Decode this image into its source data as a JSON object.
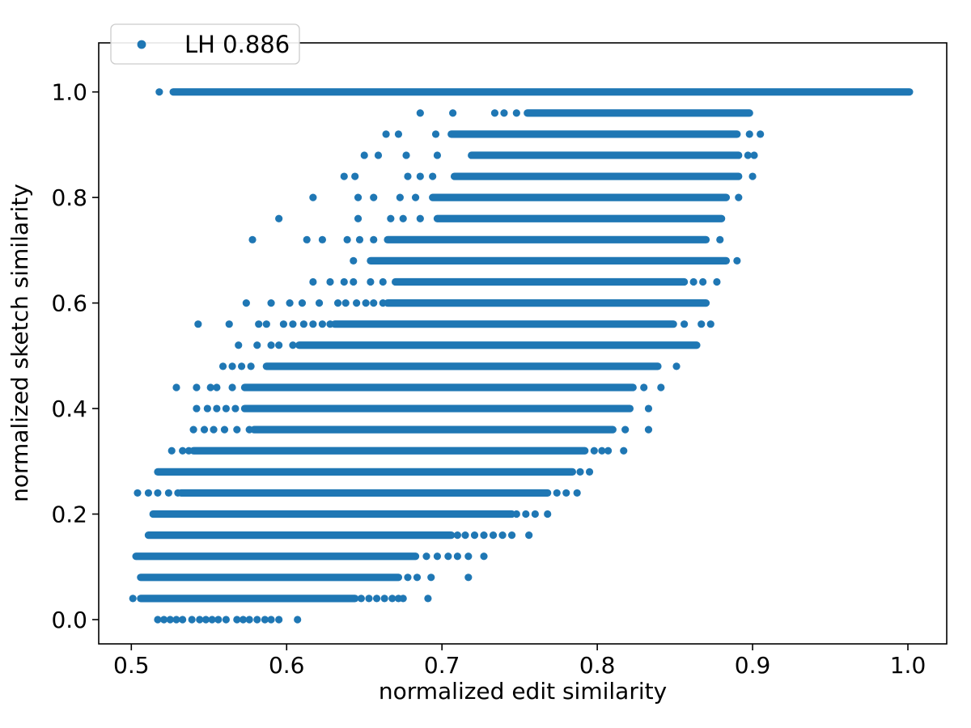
{
  "chart_data": {
    "type": "scatter",
    "title": "",
    "xlabel": "normalized edit similarity",
    "ylabel": "normalized sketch similarity",
    "xlim": [
      0.479,
      1.025
    ],
    "ylim": [
      -0.046,
      1.093
    ],
    "grid": false,
    "legend": {
      "label": "LH 0.886",
      "position": "upper left"
    },
    "marker_color": "#1f77b4",
    "marker_diameter_px": 9.2,
    "xticks": [
      0.5,
      0.6,
      0.7,
      0.8,
      0.9,
      1.0
    ],
    "xtick_labels": [
      "0.5",
      "0.6",
      "0.7",
      "0.8",
      "0.9",
      "1.0"
    ],
    "yticks": [
      0.0,
      0.2,
      0.4,
      0.6,
      0.8,
      1.0
    ],
    "ytick_labels": [
      "0.0",
      "0.2",
      "0.4",
      "0.6",
      "0.8",
      "1.0"
    ],
    "rows": [
      {
        "y": 1.0,
        "band": [
          0.527,
          1.001
        ],
        "dots": [
          0.518
        ]
      },
      {
        "y": 0.96,
        "band": [
          0.755,
          0.898
        ],
        "dots": [
          0.686,
          0.707,
          0.734,
          0.74,
          0.748
        ]
      },
      {
        "y": 0.92,
        "band": [
          0.706,
          0.89
        ],
        "dots": [
          0.664,
          0.672,
          0.696,
          0.898,
          0.905
        ]
      },
      {
        "y": 0.88,
        "band": [
          0.719,
          0.891
        ],
        "dots": [
          0.65,
          0.659,
          0.677,
          0.697,
          0.897,
          0.901
        ]
      },
      {
        "y": 0.84,
        "band": [
          0.708,
          0.891
        ],
        "dots": [
          0.637,
          0.644,
          0.678,
          0.686,
          0.694,
          0.9
        ]
      },
      {
        "y": 0.8,
        "band": [
          0.694,
          0.883
        ],
        "dots": [
          0.617,
          0.646,
          0.656,
          0.673,
          0.683,
          0.891
        ]
      },
      {
        "y": 0.76,
        "band": [
          0.697,
          0.88
        ],
        "dots": [
          0.595,
          0.646,
          0.667,
          0.675,
          0.686
        ]
      },
      {
        "y": 0.72,
        "band": [
          0.665,
          0.87
        ],
        "dots": [
          0.578,
          0.613,
          0.623,
          0.639,
          0.647,
          0.656,
          0.879
        ]
      },
      {
        "y": 0.68,
        "band": [
          0.654,
          0.883
        ],
        "dots": [
          0.643,
          0.89
        ]
      },
      {
        "y": 0.64,
        "band": [
          0.67,
          0.856
        ],
        "dots": [
          0.617,
          0.628,
          0.637,
          0.643,
          0.654,
          0.662,
          0.862,
          0.868,
          0.877
        ]
      },
      {
        "y": 0.6,
        "band": [
          0.665,
          0.87
        ],
        "dots": [
          0.574,
          0.59,
          0.602,
          0.61,
          0.621,
          0.633,
          0.638,
          0.645,
          0.651,
          0.656,
          0.662
        ]
      },
      {
        "y": 0.56,
        "band": [
          0.631,
          0.849
        ],
        "dots": [
          0.543,
          0.563,
          0.582,
          0.587,
          0.598,
          0.604,
          0.611,
          0.617,
          0.623,
          0.628,
          0.856,
          0.867,
          0.873
        ]
      },
      {
        "y": 0.52,
        "band": [
          0.608,
          0.864
        ],
        "dots": [
          0.569,
          0.581,
          0.59,
          0.595,
          0.604
        ]
      },
      {
        "y": 0.48,
        "band": [
          0.587,
          0.839
        ],
        "dots": [
          0.559,
          0.565,
          0.571,
          0.577,
          0.851
        ]
      },
      {
        "y": 0.44,
        "band": [
          0.573,
          0.823
        ],
        "dots": [
          0.529,
          0.542,
          0.551,
          0.555,
          0.565,
          0.83,
          0.841
        ]
      },
      {
        "y": 0.4,
        "band": [
          0.573,
          0.821
        ],
        "dots": [
          0.542,
          0.549,
          0.555,
          0.561,
          0.567,
          0.833
        ]
      },
      {
        "y": 0.36,
        "band": [
          0.579,
          0.81
        ],
        "dots": [
          0.54,
          0.547,
          0.553,
          0.56,
          0.568,
          0.576,
          0.818,
          0.833
        ]
      },
      {
        "y": 0.32,
        "band": [
          0.54,
          0.792
        ],
        "dots": [
          0.526,
          0.533,
          0.537,
          0.798,
          0.803,
          0.807,
          0.817
        ]
      },
      {
        "y": 0.28,
        "band": [
          0.517,
          0.784
        ],
        "dots": [
          0.789,
          0.795
        ]
      },
      {
        "y": 0.24,
        "band": [
          0.532,
          0.768
        ],
        "dots": [
          0.504,
          0.511,
          0.517,
          0.524,
          0.53,
          0.774,
          0.78,
          0.787
        ]
      },
      {
        "y": 0.2,
        "band": [
          0.514,
          0.745
        ],
        "dots": [
          0.748,
          0.754,
          0.76,
          0.768
        ]
      },
      {
        "y": 0.16,
        "band": [
          0.511,
          0.706
        ],
        "dots": [
          0.71,
          0.715,
          0.721,
          0.727,
          0.733,
          0.739,
          0.745,
          0.756
        ]
      },
      {
        "y": 0.12,
        "band": [
          0.503,
          0.683
        ],
        "dots": [
          0.69,
          0.697,
          0.704,
          0.71,
          0.717,
          0.727
        ]
      },
      {
        "y": 0.08,
        "band": [
          0.506,
          0.672
        ],
        "dots": [
          0.678,
          0.684,
          0.693,
          0.717
        ]
      },
      {
        "y": 0.04,
        "band": [
          0.506,
          0.644
        ],
        "dots": [
          0.501,
          0.648,
          0.653,
          0.658,
          0.663,
          0.668,
          0.672,
          0.675,
          0.691
        ]
      },
      {
        "y": 0.0,
        "band": null,
        "dots": [
          0.517,
          0.521,
          0.525,
          0.529,
          0.533,
          0.539,
          0.544,
          0.548,
          0.552,
          0.556,
          0.561,
          0.568,
          0.572,
          0.576,
          0.581,
          0.586,
          0.59,
          0.595,
          0.607
        ]
      }
    ]
  }
}
